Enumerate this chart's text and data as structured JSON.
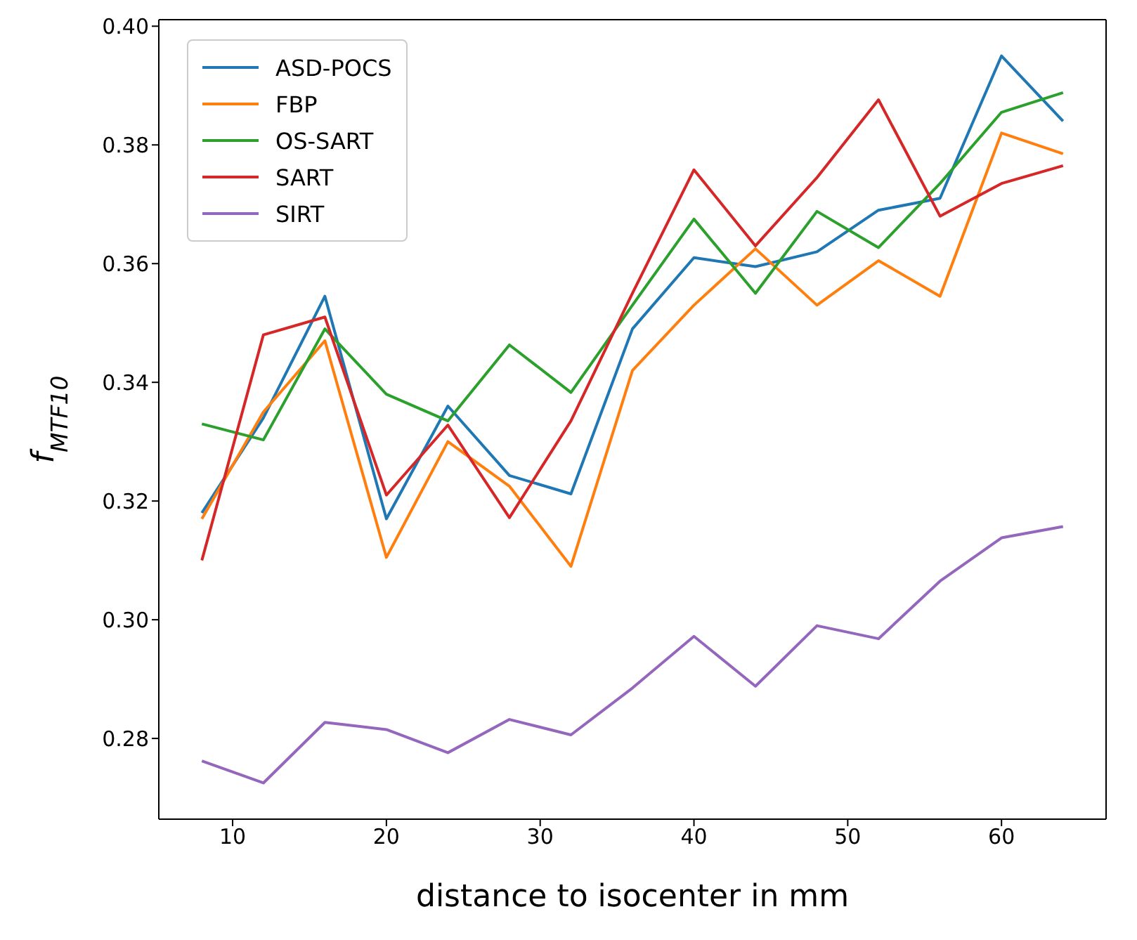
{
  "chart_data": {
    "type": "line",
    "xlabel": "distance to isocenter in mm",
    "ylabel": "f$_{MTF10}$",
    "x": [
      8,
      12,
      16,
      20,
      24,
      28,
      32,
      36,
      40,
      44,
      48,
      52,
      56,
      60,
      64
    ],
    "xlim": [
      5.2,
      66.8
    ],
    "xticks": [
      10,
      20,
      30,
      40,
      50,
      60
    ],
    "ylim": [
      0.2664,
      0.4011
    ],
    "yticks": [
      0.28,
      {
        "value": 0.3,
        "label": "0.30"
      },
      0.32,
      0.34,
      0.36,
      0.38,
      {
        "value": 0.4,
        "label": "0.40"
      }
    ],
    "legend": "top left",
    "grid": false,
    "marker": "none",
    "line_style": "solid",
    "series": [
      {
        "name": "ASD-POCS",
        "color": "#1f77b4",
        "values": [
          0.318,
          0.334,
          0.3545,
          0.317,
          0.336,
          0.3243,
          0.3212,
          0.349,
          0.361,
          0.3595,
          0.362,
          0.369,
          0.371,
          0.395,
          0.384
        ]
      },
      {
        "name": "FBP",
        "color": "#ff7f0e",
        "values": [
          0.317,
          0.335,
          0.347,
          0.3105,
          0.33,
          0.3225,
          0.309,
          0.342,
          0.353,
          0.3625,
          0.353,
          0.3605,
          0.3545,
          0.382,
          0.3785
        ]
      },
      {
        "name": "OS-SART",
        "color": "#2ca02c",
        "values": [
          0.333,
          0.3303,
          0.349,
          0.338,
          0.3335,
          0.3463,
          0.3383,
          0.353,
          0.3675,
          0.355,
          0.3688,
          0.3627,
          0.3735,
          0.3855,
          0.3888
        ]
      },
      {
        "name": "SART",
        "color": "#d62728",
        "values": [
          0.31,
          0.348,
          0.351,
          0.321,
          0.3328,
          0.3172,
          0.3335,
          0.355,
          0.3758,
          0.363,
          0.3745,
          0.3876,
          0.368,
          0.3735,
          0.3765
        ]
      },
      {
        "name": "SIRT",
        "color": "#9467bd",
        "values": [
          0.2762,
          0.2725,
          0.2827,
          0.2815,
          0.2776,
          0.2832,
          0.2806,
          0.2885,
          0.2972,
          0.2888,
          0.299,
          0.2968,
          0.3065,
          0.3138,
          0.3157
        ]
      }
    ]
  }
}
